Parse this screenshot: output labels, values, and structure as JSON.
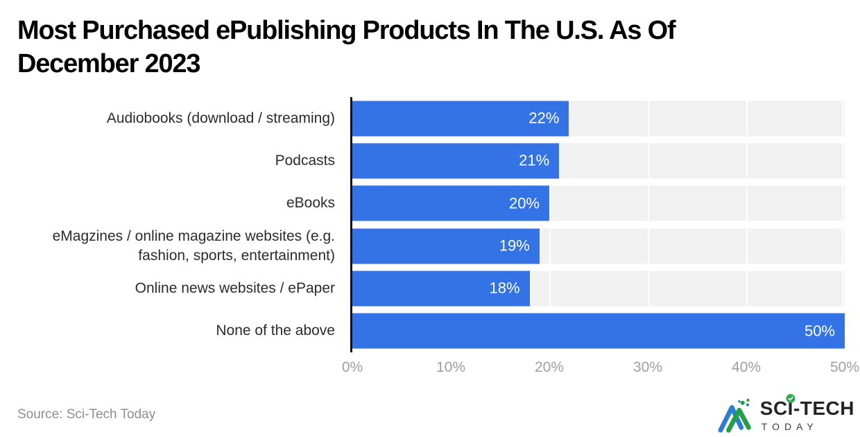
{
  "title": {
    "full": "Most Purchased ePublishing Products In The U.S. As Of December 2023",
    "lines": [
      "Most Purchased ePublishing Products In The U.S. As Of",
      "December 2023"
    ]
  },
  "chart_data": {
    "type": "bar",
    "orientation": "horizontal",
    "title": "Most Purchased ePublishing Products In The U.S. As Of December 2023",
    "categories": [
      "Audiobooks (download / streaming)",
      "Podcasts",
      "eBooks",
      "eMagzines / online magazine websites (e.g. fashion, sports, entertainment)",
      "Online news websites / ePaper",
      "None of the above"
    ],
    "values": [
      22,
      21,
      20,
      19,
      18,
      50
    ],
    "value_labels": [
      "22%",
      "21%",
      "20%",
      "19%",
      "18%",
      "50%"
    ],
    "xlabel": "",
    "ylabel": "",
    "xlim": [
      0,
      50
    ],
    "x_tick_step": 10,
    "x_ticks": [
      "0%",
      "10%",
      "20%",
      "30%",
      "40%",
      "50%"
    ],
    "grid": true,
    "legend": "none",
    "bar_color": "#3473e6",
    "track_color": "#f1f1f1",
    "gridline_color": "#ffffff",
    "axis_line_color": "#111111",
    "tick_label_color": "#9e9e9e",
    "category_label_color": "#2b2b2b",
    "value_label_color": "#ffffff"
  },
  "footer": {
    "source": "Source: Sci-Tech Today"
  },
  "logo": {
    "text_sc": "SC",
    "text_i": "I",
    "text_tech": "-TECH",
    "subtext": "TODAY",
    "check_icon": "check-circle",
    "mark_blue": "#2d7dd2",
    "mark_green": "#249e47",
    "check_green": "#34a853"
  }
}
